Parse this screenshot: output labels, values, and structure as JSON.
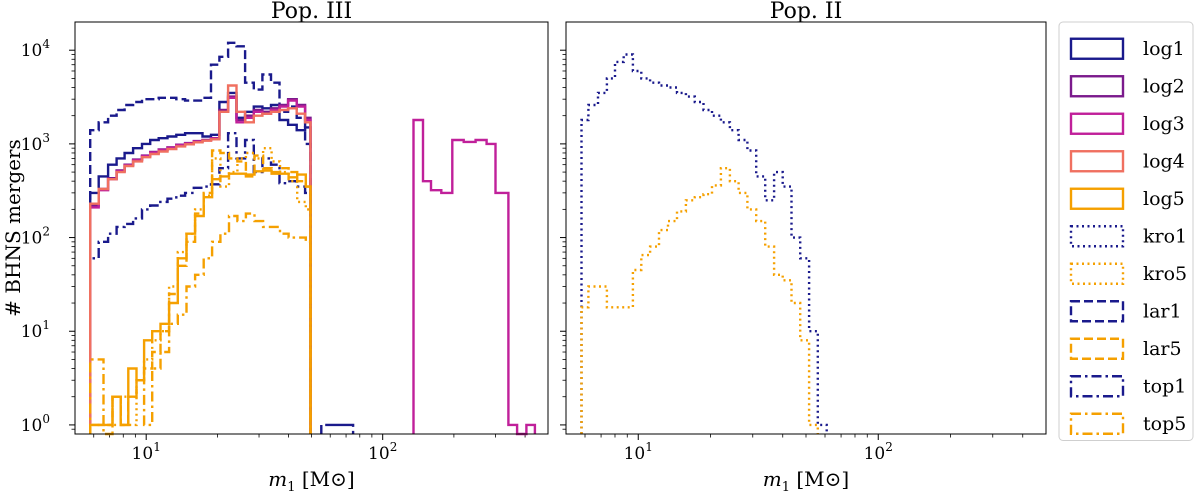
{
  "chart_data": [
    {
      "type": "histogram",
      "title": "Pop. III",
      "xlabel": "m_1 [M⊙]",
      "ylabel": "# BHNS mergers",
      "xscale": "log",
      "yscale": "log",
      "xlim": [
        5,
        500
      ],
      "ylim": [
        0.8,
        20000
      ],
      "x_ticks": [
        {
          "v": 10,
          "base": "10",
          "exp": "1"
        },
        {
          "v": 100,
          "base": "10",
          "exp": "2"
        }
      ],
      "y_ticks": [
        {
          "v": 1,
          "base": "10",
          "exp": "0"
        },
        {
          "v": 10,
          "base": "10",
          "exp": "1"
        },
        {
          "v": 100,
          "base": "10",
          "exp": "2"
        },
        {
          "v": 1000,
          "base": "10",
          "exp": "3"
        },
        {
          "v": 10000,
          "base": "10",
          "exp": "4"
        }
      ],
      "y_tick_labels_visible": true,
      "series": [
        {
          "name": "lar1",
          "edges": [
            5.8,
            6.3,
            6.9,
            7.5,
            8.1,
            8.8,
            9.6,
            10.4,
            11.3,
            12.3,
            13.4,
            14.6,
            15.9,
            17.3,
            18.8,
            20.4,
            22.2,
            24.1,
            26.2,
            28.5,
            31.0,
            33.7,
            36.6,
            39.8,
            43.3,
            47.0,
            49.5
          ],
          "values": [
            1400,
            1700,
            2000,
            2300,
            2600,
            2800,
            3000,
            3000,
            3100,
            3100,
            3000,
            2900,
            2900,
            3100,
            7000,
            8500,
            12000,
            11000,
            4500,
            3800,
            5500,
            4500,
            2200,
            2500,
            1900,
            1000
          ]
        },
        {
          "name": "top1",
          "edges": [
            5.8,
            6.3,
            6.9,
            7.5,
            8.1,
            8.8,
            9.6,
            10.4,
            11.3,
            12.3,
            13.4,
            14.6,
            15.9,
            17.3,
            18.8,
            20.4,
            22.2,
            24.1,
            26.2,
            28.5,
            31.0,
            33.7,
            36.6,
            39.8,
            43.3,
            47.0,
            49.5
          ],
          "values": [
            60,
            90,
            110,
            130,
            140,
            160,
            200,
            220,
            240,
            260,
            280,
            300,
            340,
            350,
            370,
            550,
            1300,
            700,
            1100,
            500,
            700,
            600,
            380,
            400,
            350,
            300
          ]
        },
        {
          "name": "top1-tail",
          "edges": [
            55,
            62,
            66,
            70,
            75
          ],
          "values": [
            1,
            1,
            1,
            1
          ]
        },
        {
          "name": "log1",
          "edges": [
            5.8,
            6.3,
            6.9,
            7.5,
            8.1,
            8.8,
            9.6,
            10.4,
            11.3,
            12.3,
            13.4,
            14.6,
            15.9,
            17.3,
            18.8,
            20.4,
            22.2,
            24.1,
            26.2,
            28.5,
            31.0,
            33.7,
            36.6,
            39.8,
            43.3,
            47.0,
            49.5
          ],
          "values": [
            300,
            450,
            600,
            700,
            800,
            900,
            1000,
            1100,
            1150,
            1200,
            1250,
            1300,
            1300,
            1200,
            1250,
            2800,
            3500,
            1900,
            2200,
            2500,
            2400,
            2600,
            1800,
            1600,
            1400,
            1500
          ]
        },
        {
          "name": "log2",
          "edges": [
            5.8,
            6.3,
            6.9,
            7.5,
            8.1,
            8.8,
            9.6,
            10.4,
            11.3,
            12.3,
            13.4,
            14.6,
            15.9,
            17.3,
            18.8,
            20.4,
            22.2,
            24.1,
            26.2,
            28.5,
            31.0,
            33.7,
            36.6,
            39.8,
            43.3,
            47.0,
            49.5
          ],
          "values": [
            220,
            330,
            430,
            520,
            600,
            680,
            750,
            820,
            870,
            920,
            980,
            1020,
            1070,
            1100,
            1150,
            2300,
            3200,
            1800,
            2000,
            2300,
            2200,
            2400,
            2600,
            3000,
            2600,
            1900
          ]
        },
        {
          "name": "log3",
          "edges": [
            5.8,
            6.3,
            6.9,
            7.5,
            8.1,
            8.8,
            9.6,
            10.4,
            11.3,
            12.3,
            13.4,
            14.6,
            15.9,
            17.3,
            18.8,
            20.4,
            22.2,
            24.1,
            26.2,
            28.5,
            31.0,
            33.7,
            36.6,
            39.8,
            43.3,
            47.0,
            49.5
          ],
          "values": [
            210,
            320,
            420,
            510,
            590,
            670,
            740,
            810,
            860,
            910,
            970,
            1010,
            1060,
            1090,
            1140,
            2200,
            3100,
            1700,
            1900,
            2200,
            2100,
            2300,
            2500,
            2900,
            2500,
            1800
          ]
        },
        {
          "name": "log3-high",
          "edges": [
            135,
            148,
            160,
            177,
            197,
            220,
            247,
            275,
            300,
            340,
            370,
            405,
            440
          ],
          "values": [
            1800,
            400,
            320,
            300,
            1100,
            1050,
            1100,
            1000,
            300,
            1,
            0.8,
            1
          ]
        },
        {
          "name": "log4",
          "edges": [
            5.8,
            6.3,
            6.9,
            7.5,
            8.1,
            8.8,
            9.6,
            10.4,
            11.3,
            12.3,
            13.4,
            14.6,
            15.9,
            17.3,
            18.8,
            20.4,
            22.2,
            24.1,
            26.2,
            28.5,
            31.0,
            33.7,
            36.6,
            39.8,
            43.3,
            47.0,
            49.5
          ],
          "values": [
            230,
            330,
            420,
            500,
            580,
            650,
            720,
            780,
            830,
            880,
            940,
            990,
            1040,
            1080,
            1120,
            2200,
            4200,
            2200,
            1700,
            2000,
            2100,
            2200,
            2300,
            2400,
            2100,
            1700
          ]
        },
        {
          "name": "log5",
          "edges": [
            5.8,
            7.2,
            7.8,
            8.4,
            9.1,
            9.8,
            10.6,
            11.5,
            12.5,
            13.6,
            14.8,
            16.1,
            17.5,
            19.0,
            20.6,
            22.4,
            24.3,
            26.4,
            28.7,
            31.2,
            33.9,
            36.8,
            40.0,
            43.5,
            47.3,
            49.5
          ],
          "values": [
            1,
            2,
            1,
            4,
            3,
            8,
            10,
            12,
            20,
            60,
            110,
            170,
            270,
            420,
            450,
            480,
            480,
            470,
            510,
            520,
            480,
            480,
            440,
            470,
            350
          ]
        },
        {
          "name": "kro5",
          "edges": [
            5.8,
            6.6,
            7.2,
            7.8,
            8.4,
            9.1,
            9.8,
            10.6,
            11.5,
            12.5,
            13.6,
            14.8,
            16.1,
            17.5,
            19.0,
            20.6,
            22.4,
            24.3,
            26.4,
            28.7,
            31.2,
            33.9,
            36.8,
            40.0,
            43.5,
            47.3,
            49.5
          ],
          "values": [
            1,
            1,
            1,
            2,
            1,
            3,
            5,
            8,
            10,
            30,
            70,
            110,
            200,
            280,
            700,
            350,
            500,
            700,
            800,
            700,
            900,
            650,
            500,
            400,
            240,
            200
          ]
        },
        {
          "name": "lar5",
          "edges": [
            5.8,
            6.6,
            7.2,
            7.8,
            8.4,
            9.1,
            9.8,
            10.6,
            11.5,
            12.5,
            13.6,
            14.8,
            16.1,
            17.5,
            19.0,
            20.6,
            22.4,
            24.3,
            26.4,
            28.7,
            31.2,
            33.9,
            36.8,
            40.0,
            43.5,
            47.3,
            49.5
          ],
          "values": [
            1,
            1,
            2,
            1,
            2,
            3,
            4,
            6,
            10,
            25,
            50,
            90,
            180,
            300,
            850,
            800,
            700,
            650,
            450,
            750,
            550,
            500,
            550,
            500,
            400,
            350
          ]
        },
        {
          "name": "top5",
          "edges": [
            5.8,
            6.6,
            7.2,
            7.8,
            8.4,
            9.1,
            9.8,
            10.6,
            11.5,
            12.5,
            13.6,
            14.8,
            16.1,
            17.5,
            19.0,
            20.6,
            22.4,
            24.3,
            26.4,
            28.7,
            31.2,
            33.9,
            36.8,
            40.0,
            43.5,
            47.3,
            49.5
          ],
          "values": [
            5,
            0.8,
            2,
            1,
            2,
            3,
            1,
            4,
            6,
            12,
            15,
            30,
            40,
            60,
            90,
            110,
            170,
            150,
            180,
            150,
            130,
            130,
            110,
            100,
            100,
            90
          ]
        }
      ]
    },
    {
      "type": "histogram",
      "title": "Pop. II",
      "xlabel": "m_1 [M⊙]",
      "ylabel": "",
      "xscale": "log",
      "yscale": "log",
      "xlim": [
        5,
        500
      ],
      "ylim": [
        0.8,
        20000
      ],
      "x_ticks": [
        {
          "v": 10,
          "base": "10",
          "exp": "1"
        },
        {
          "v": 100,
          "base": "10",
          "exp": "2"
        }
      ],
      "y_ticks": [
        {
          "v": 1
        },
        {
          "v": 10
        },
        {
          "v": 100
        },
        {
          "v": 1000
        },
        {
          "v": 10000
        }
      ],
      "y_tick_labels_visible": false,
      "series": [
        {
          "name": "kro1",
          "edges": [
            5.8,
            6.2,
            6.8,
            7.4,
            8.0,
            8.7,
            9.5,
            10.3,
            11.2,
            12.2,
            13.3,
            14.5,
            15.8,
            17.2,
            18.7,
            20.3,
            22.1,
            24.1,
            26.2,
            28.5,
            31.0,
            33.8,
            36.8,
            40.0,
            43.5,
            47.3,
            51.5,
            56.0,
            61.0
          ],
          "values": [
            1800,
            2600,
            3500,
            5000,
            7500,
            9000,
            6000,
            5000,
            4500,
            4200,
            4000,
            3500,
            3200,
            2800,
            2300,
            2000,
            1700,
            1400,
            1100,
            850,
            450,
            250,
            500,
            350,
            100,
            60,
            10,
            1
          ]
        },
        {
          "name": "kro5",
          "edges": [
            5.8,
            6.2,
            6.8,
            7.4,
            8.0,
            8.7,
            9.5,
            10.3,
            11.2,
            12.2,
            13.3,
            14.5,
            15.8,
            17.2,
            18.7,
            20.3,
            22.1,
            24.1,
            26.2,
            28.5,
            31.0,
            33.8,
            36.8,
            40.0,
            43.5,
            47.3,
            51.5,
            56.0
          ],
          "values": [
            18,
            30,
            30,
            18,
            18,
            18,
            45,
            65,
            80,
            120,
            150,
            190,
            250,
            270,
            290,
            360,
            550,
            400,
            300,
            200,
            150,
            80,
            40,
            35,
            20,
            8,
            1
          ]
        }
      ]
    }
  ],
  "legend": {
    "position": "right",
    "items": [
      {
        "label": "log1",
        "color": "#1a1a8c",
        "style": "solid"
      },
      {
        "label": "log2",
        "color": "#7b1a8c",
        "style": "solid"
      },
      {
        "label": "log3",
        "color": "#c0209a",
        "style": "solid"
      },
      {
        "label": "log4",
        "color": "#f07060",
        "style": "solid"
      },
      {
        "label": "log5",
        "color": "#f5a000",
        "style": "solid"
      },
      {
        "label": "kro1",
        "color": "#1a1a8c",
        "style": "dotted"
      },
      {
        "label": "kro5",
        "color": "#f5a000",
        "style": "dotted"
      },
      {
        "label": "lar1",
        "color": "#1a1a8c",
        "style": "dashed"
      },
      {
        "label": "lar5",
        "color": "#f5a000",
        "style": "dashed"
      },
      {
        "label": "top1",
        "color": "#1a1a8c",
        "style": "dashdot"
      },
      {
        "label": "top5",
        "color": "#f5a000",
        "style": "dashdot"
      }
    ]
  },
  "x_unit_symbol": "M⊙",
  "styles": {
    "log1": {
      "color": "#1a1a8c",
      "dash": "solid"
    },
    "log2": {
      "color": "#7b1a8c",
      "dash": "solid"
    },
    "log3": {
      "color": "#c0209a",
      "dash": "solid"
    },
    "log3-high": {
      "color": "#c0209a",
      "dash": "solid"
    },
    "log4": {
      "color": "#f07060",
      "dash": "solid"
    },
    "log5": {
      "color": "#f5a000",
      "dash": "solid"
    },
    "kro1": {
      "color": "#1a1a8c",
      "dash": "dotted"
    },
    "kro5": {
      "color": "#f5a000",
      "dash": "dotted"
    },
    "lar1": {
      "color": "#1a1a8c",
      "dash": "dashed"
    },
    "lar5": {
      "color": "#f5a000",
      "dash": "dashed"
    },
    "top1": {
      "color": "#1a1a8c",
      "dash": "dashdot"
    },
    "top1-tail": {
      "color": "#1a1a8c",
      "dash": "dashed"
    },
    "top5": {
      "color": "#f5a000",
      "dash": "dashdot"
    }
  }
}
